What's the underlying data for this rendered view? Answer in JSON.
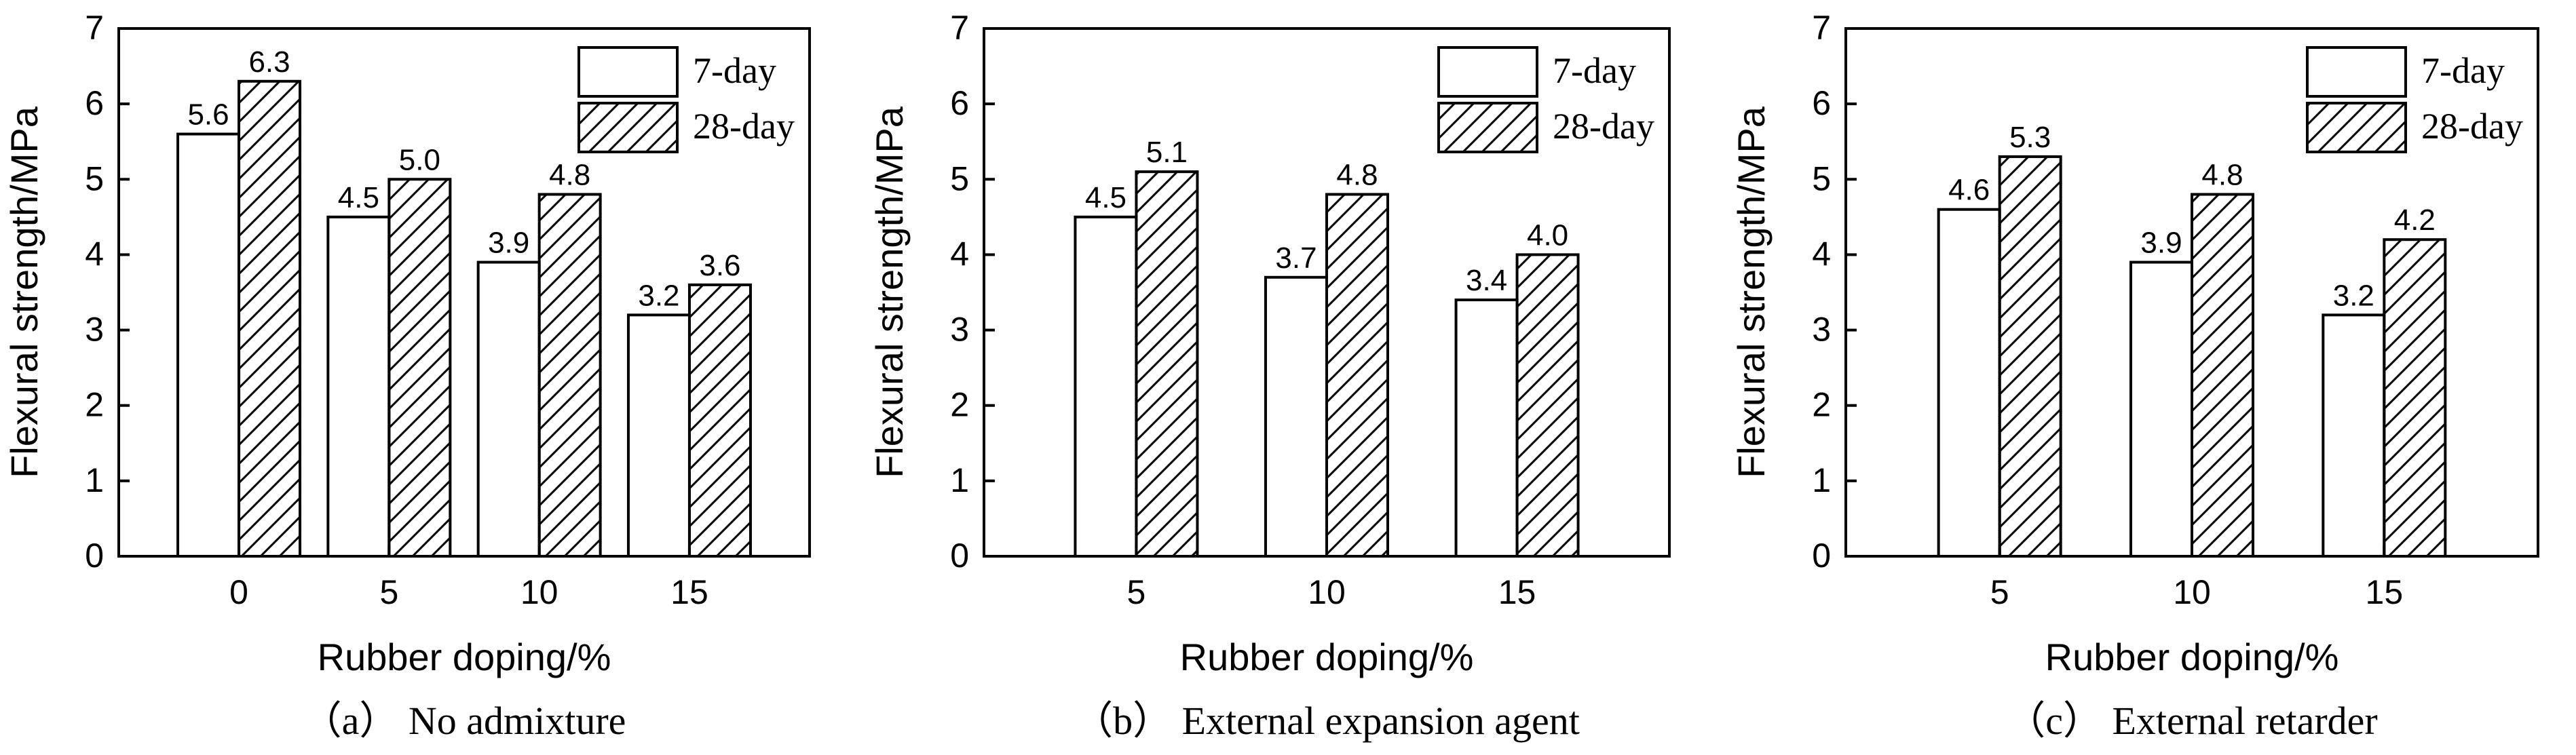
{
  "chart_data": [
    {
      "type": "bar",
      "caption": "（a） No admixture",
      "categories": [
        "0",
        "5",
        "10",
        "15"
      ],
      "series": [
        {
          "name": "7-day",
          "values": [
            5.6,
            4.5,
            3.9,
            3.2
          ],
          "labels": [
            "5.6",
            "4.5",
            "3.9",
            "3.2"
          ],
          "pattern": "none"
        },
        {
          "name": "28-day",
          "values": [
            6.3,
            5.0,
            4.8,
            3.6
          ],
          "labels": [
            "6.3",
            "5.0",
            "4.8",
            "3.6"
          ],
          "pattern": "hatch"
        }
      ],
      "xlabel": "Rubber doping/%",
      "ylabel": "Flexural strength/MPa",
      "ylim": [
        0,
        7
      ],
      "yticks": [
        "0",
        "1",
        "2",
        "3",
        "4",
        "5",
        "6",
        "7"
      ],
      "grid": false,
      "legend": "top-right"
    },
    {
      "type": "bar",
      "caption": "（b） External expansion agent",
      "categories": [
        "5",
        "10",
        "15"
      ],
      "series": [
        {
          "name": "7-day",
          "values": [
            4.5,
            3.7,
            3.4
          ],
          "labels": [
            "4.5",
            "3.7",
            "3.4"
          ],
          "pattern": "none"
        },
        {
          "name": "28-day",
          "values": [
            5.1,
            4.8,
            4.0
          ],
          "labels": [
            "5.1",
            "4.8",
            "4.0"
          ],
          "pattern": "hatch"
        }
      ],
      "xlabel": "Rubber doping/%",
      "ylabel": "Flexural strength/MPa",
      "ylim": [
        0,
        7
      ],
      "yticks": [
        "0",
        "1",
        "2",
        "3",
        "4",
        "5",
        "6",
        "7"
      ],
      "grid": false,
      "legend": "top-right"
    },
    {
      "type": "bar",
      "caption": "（c） External retarder",
      "categories": [
        "5",
        "10",
        "15"
      ],
      "series": [
        {
          "name": "7-day",
          "values": [
            4.6,
            3.9,
            3.2
          ],
          "labels": [
            "4.6",
            "3.9",
            "3.2"
          ],
          "pattern": "none"
        },
        {
          "name": "28-day",
          "values": [
            5.3,
            4.8,
            4.2
          ],
          "labels": [
            "5.3",
            "4.8",
            "4.2"
          ],
          "pattern": "hatch"
        }
      ],
      "xlabel": "Rubber doping/%",
      "ylabel": "Flexural strength/MPa",
      "ylim": [
        0,
        7
      ],
      "yticks": [
        "0",
        "1",
        "2",
        "3",
        "4",
        "5",
        "6",
        "7"
      ],
      "grid": false,
      "legend": "top-right"
    }
  ]
}
